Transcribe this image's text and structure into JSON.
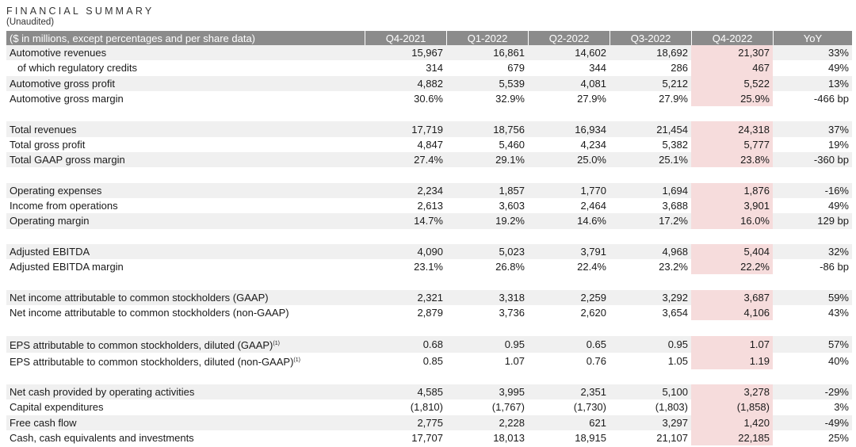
{
  "title": "FINANCIAL SUMMARY",
  "subtitle": "(Unaudited)",
  "header": {
    "label": "($ in millions, except percentages and per share data)",
    "columns": [
      "Q4-2021",
      "Q1-2022",
      "Q2-2022",
      "Q3-2022",
      "Q4-2022",
      "YoY"
    ]
  },
  "highlight_color": "#f6dcdc",
  "header_color": "#8b8b8b",
  "groups": [
    [
      {
        "label": "Automotive revenues",
        "values": [
          "15,967",
          "16,861",
          "14,602",
          "18,692",
          "21,307",
          "33%"
        ]
      },
      {
        "label": "of which regulatory credits",
        "indent": true,
        "values": [
          "314",
          "679",
          "344",
          "286",
          "467",
          "49%"
        ]
      },
      {
        "label": "Automotive gross profit",
        "values": [
          "4,882",
          "5,539",
          "4,081",
          "5,212",
          "5,522",
          "13%"
        ]
      },
      {
        "label": "Automotive gross margin",
        "values": [
          "30.6%",
          "32.9%",
          "27.9%",
          "27.9%",
          "25.9%",
          "-466 bp"
        ]
      }
    ],
    [
      {
        "label": "Total revenues",
        "values": [
          "17,719",
          "18,756",
          "16,934",
          "21,454",
          "24,318",
          "37%"
        ]
      },
      {
        "label": "Total gross profit",
        "values": [
          "4,847",
          "5,460",
          "4,234",
          "5,382",
          "5,777",
          "19%"
        ]
      },
      {
        "label": "Total GAAP gross margin",
        "values": [
          "27.4%",
          "29.1%",
          "25.0%",
          "25.1%",
          "23.8%",
          "-360 bp"
        ]
      }
    ],
    [
      {
        "label": "Operating expenses",
        "values": [
          "2,234",
          "1,857",
          "1,770",
          "1,694",
          "1,876",
          "-16%"
        ]
      },
      {
        "label": "Income from operations",
        "values": [
          "2,613",
          "3,603",
          "2,464",
          "3,688",
          "3,901",
          "49%"
        ]
      },
      {
        "label": "Operating margin",
        "values": [
          "14.7%",
          "19.2%",
          "14.6%",
          "17.2%",
          "16.0%",
          "129 bp"
        ]
      }
    ],
    [
      {
        "label": "Adjusted EBITDA",
        "values": [
          "4,090",
          "5,023",
          "3,791",
          "4,968",
          "5,404",
          "32%"
        ]
      },
      {
        "label": "Adjusted EBITDA margin",
        "values": [
          "23.1%",
          "26.8%",
          "22.4%",
          "23.2%",
          "22.2%",
          "-86 bp"
        ]
      }
    ],
    [
      {
        "label": "Net income attributable to common stockholders (GAAP)",
        "values": [
          "2,321",
          "3,318",
          "2,259",
          "3,292",
          "3,687",
          "59%"
        ]
      },
      {
        "label": "Net income attributable to common stockholders (non-GAAP)",
        "values": [
          "2,879",
          "3,736",
          "2,620",
          "3,654",
          "4,106",
          "43%"
        ]
      }
    ],
    [
      {
        "label": "EPS attributable to common stockholders, diluted (GAAP)",
        "sup": "(1)",
        "values": [
          "0.68",
          "0.95",
          "0.65",
          "0.95",
          "1.07",
          "57%"
        ]
      },
      {
        "label": "EPS attributable to common stockholders, diluted (non-GAAP)",
        "sup": "(1)",
        "values": [
          "0.85",
          "1.07",
          "0.76",
          "1.05",
          "1.19",
          "40%"
        ]
      }
    ],
    [
      {
        "label": "Net cash provided by operating activities",
        "values": [
          "4,585",
          "3,995",
          "2,351",
          "5,100",
          "3,278",
          "-29%"
        ]
      },
      {
        "label": "Capital expenditures",
        "values": [
          "(1,810)",
          "(1,767)",
          "(1,730)",
          "(1,803)",
          "(1,858)",
          "3%"
        ]
      },
      {
        "label": "Free cash flow",
        "values": [
          "2,775",
          "2,228",
          "621",
          "3,297",
          "1,420",
          "-49%"
        ]
      },
      {
        "label": "Cash, cash equivalents and investments",
        "values": [
          "17,707",
          "18,013",
          "18,915",
          "21,107",
          "22,185",
          "25%"
        ]
      }
    ]
  ]
}
